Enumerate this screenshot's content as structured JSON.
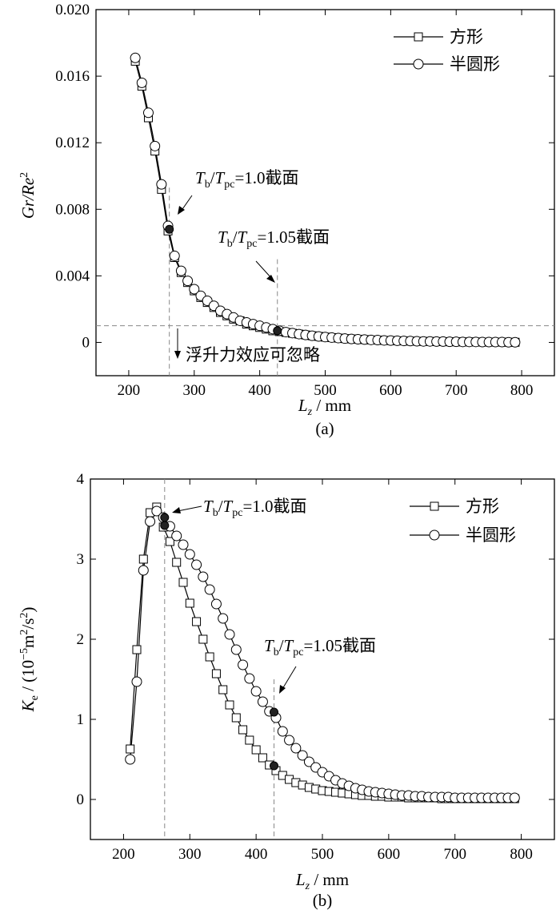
{
  "chart_data": [
    {
      "type": "line",
      "caption": "(a)",
      "xlabel": "L_z / mm",
      "xlabel_main": "L",
      "xlabel_sub": "z",
      "xlabel_unit": " / mm",
      "ylabel": "Gr/Re^2",
      "ylabel_main": "Gr/Re",
      "ylabel_sup": "2",
      "xlim": [
        150,
        850
      ],
      "ylim": [
        -0.002,
        0.02
      ],
      "xticks": [
        200,
        300,
        400,
        500,
        600,
        700,
        800
      ],
      "xtick_labels": [
        "200",
        "300",
        "400",
        "500",
        "600",
        "700",
        "800"
      ],
      "yticks": [
        0,
        0.004,
        0.008,
        0.012,
        0.016,
        0.02
      ],
      "ytick_labels": [
        "0",
        "0.004",
        "0.008",
        "0.012",
        "0.016",
        "0.020"
      ],
      "legend": {
        "position": "top-right",
        "entries": [
          "方形",
          "半圆形"
        ]
      },
      "threshold_line": {
        "y": 0.001,
        "label": "浮升力效应可忽略"
      },
      "annotations": [
        {
          "T": "T",
          "b": "b",
          "slash": "/",
          "T2": "T",
          "pc": "pc",
          "rest": "=1.0截面",
          "x": 262,
          "text": "T_b/T_pc=1.0截面"
        },
        {
          "T": "T",
          "b": "b",
          "slash": "/",
          "T2": "T",
          "pc": "pc",
          "rest": "=1.05截面",
          "x": 427,
          "text": "T_b/T_pc=1.05截面"
        }
      ],
      "series": [
        {
          "name": "方形",
          "marker": "square",
          "x": [
            210,
            220,
            230,
            240,
            250,
            260,
            270,
            280,
            290,
            300,
            310,
            320,
            330,
            340,
            350,
            360,
            370,
            380,
            390,
            400,
            410,
            420,
            430,
            440,
            450,
            460,
            470,
            480,
            490,
            500,
            510,
            520,
            530,
            540,
            550,
            560,
            570,
            580,
            590,
            600,
            610,
            620,
            630,
            640,
            650,
            660,
            670,
            680,
            690,
            700,
            710,
            720,
            730,
            740,
            750,
            760,
            770,
            780,
            790
          ],
          "values": [
            0.0169,
            0.0154,
            0.0135,
            0.0115,
            0.0092,
            0.0067,
            0.0051,
            0.0042,
            0.0036,
            0.0031,
            0.0027,
            0.0024,
            0.0021,
            0.0018,
            0.0016,
            0.0014,
            0.0013,
            0.0011,
            0.001,
            0.0009,
            0.0008,
            0.0007,
            0.00065,
            0.0006,
            0.00055,
            0.0005,
            0.00045,
            0.0004,
            0.00036,
            0.00032,
            0.00029,
            0.00026,
            0.00023,
            0.00021,
            0.00019,
            0.00017,
            0.00015,
            0.00014,
            0.00012,
            0.00011,
            0.0001,
            9e-05,
            8e-05,
            7e-05,
            6e-05,
            6e-05,
            5e-05,
            5e-05,
            4e-05,
            4e-05,
            3e-05,
            3e-05,
            3e-05,
            2e-05,
            2e-05,
            2e-05,
            2e-05,
            1e-05,
            1e-05
          ]
        },
        {
          "name": "半圆形",
          "marker": "circle",
          "x": [
            210,
            220,
            230,
            240,
            250,
            260,
            270,
            280,
            290,
            300,
            310,
            320,
            330,
            340,
            350,
            360,
            370,
            380,
            390,
            400,
            410,
            420,
            430,
            440,
            450,
            460,
            470,
            480,
            490,
            500,
            510,
            520,
            530,
            540,
            550,
            560,
            570,
            580,
            590,
            600,
            610,
            620,
            630,
            640,
            650,
            660,
            670,
            680,
            690,
            700,
            710,
            720,
            730,
            740,
            750,
            760,
            770,
            780,
            790
          ],
          "values": [
            0.0171,
            0.0156,
            0.0138,
            0.0118,
            0.0095,
            0.007,
            0.0052,
            0.0043,
            0.0037,
            0.0032,
            0.0028,
            0.0025,
            0.0022,
            0.0019,
            0.0017,
            0.0015,
            0.0013,
            0.0012,
            0.0011,
            0.001,
            0.0009,
            0.0008,
            0.0007,
            0.00062,
            0.00056,
            0.0005,
            0.00045,
            0.0004,
            0.00036,
            0.00032,
            0.00029,
            0.00026,
            0.00023,
            0.00021,
            0.00019,
            0.00017,
            0.00015,
            0.00014,
            0.00012,
            0.00011,
            0.0001,
            9e-05,
            8e-05,
            7e-05,
            6e-05,
            6e-05,
            5e-05,
            5e-05,
            4e-05,
            4e-05,
            3e-05,
            3e-05,
            3e-05,
            2e-05,
            2e-05,
            2e-05,
            2e-05,
            1e-05,
            1e-05
          ]
        }
      ],
      "highlight_points": [
        {
          "x": 262,
          "y": 0.0068
        },
        {
          "x": 427,
          "y": 0.0007
        }
      ]
    },
    {
      "type": "line",
      "caption": "(b)",
      "xlabel": "L_z / mm",
      "xlabel_main": "L",
      "xlabel_sub": "z",
      "xlabel_unit": " / mm",
      "ylabel": "K_e / (10^-5 m^2/s^2)",
      "ylabel_main": "K",
      "ylabel_sub": "e",
      "ylabel_mid": " / (10",
      "ylabel_exp": "−5",
      "ylabel_m": "m",
      "ylabel_m_exp": "2",
      "ylabel_s": "/s",
      "ylabel_s_exp": "2",
      "ylabel_end": ")",
      "xlim": [
        150,
        850
      ],
      "ylim": [
        -0.5,
        4
      ],
      "xticks": [
        200,
        300,
        400,
        500,
        600,
        700,
        800
      ],
      "xtick_labels": [
        "200",
        "300",
        "400",
        "500",
        "600",
        "700",
        "800"
      ],
      "yticks": [
        0,
        1,
        2,
        3,
        4
      ],
      "ytick_labels": [
        "0",
        "1",
        "2",
        "3",
        "4"
      ],
      "legend": {
        "position": "top-right",
        "entries": [
          "方形",
          "半圆形"
        ]
      },
      "annotations": [
        {
          "T": "T",
          "b": "b",
          "slash": "/",
          "T2": "T",
          "pc": "pc",
          "rest": "=1.0截面",
          "x": 262,
          "text": "T_b/T_pc=1.0截面"
        },
        {
          "T": "T",
          "b": "b",
          "slash": "/",
          "T2": "T",
          "pc": "pc",
          "rest": "=1.05截面",
          "x": 427,
          "text": "T_b/T_pc=1.05截面"
        }
      ],
      "series": [
        {
          "name": "方形",
          "marker": "square",
          "x": [
            210,
            220,
            230,
            240,
            250,
            260,
            270,
            280,
            290,
            300,
            310,
            320,
            330,
            340,
            350,
            360,
            370,
            380,
            390,
            400,
            410,
            420,
            430,
            440,
            450,
            460,
            470,
            480,
            490,
            500,
            510,
            520,
            530,
            540,
            550,
            560,
            570,
            580,
            590,
            600,
            610,
            620,
            630,
            640,
            650,
            660,
            670,
            680,
            690,
            700,
            710,
            720,
            730,
            740,
            750,
            760,
            770,
            780,
            790
          ],
          "values": [
            0.63,
            1.87,
            3.0,
            3.58,
            3.65,
            3.4,
            3.22,
            2.96,
            2.71,
            2.45,
            2.22,
            2.0,
            1.78,
            1.57,
            1.37,
            1.18,
            1.02,
            0.87,
            0.74,
            0.62,
            0.52,
            0.43,
            0.36,
            0.3,
            0.25,
            0.21,
            0.18,
            0.15,
            0.13,
            0.11,
            0.1,
            0.09,
            0.08,
            0.07,
            0.06,
            0.05,
            0.05,
            0.04,
            0.04,
            0.03,
            0.03,
            0.03,
            0.02,
            0.02,
            0.02,
            0.02,
            0.02,
            0.01,
            0.01,
            0.01,
            0.01,
            0.01,
            0.01,
            0.01,
            0.01,
            0.01,
            0.01,
            0.01,
            0.01
          ]
        },
        {
          "name": "半圆形",
          "marker": "circle",
          "x": [
            210,
            220,
            230,
            240,
            250,
            260,
            270,
            280,
            290,
            300,
            310,
            320,
            330,
            340,
            350,
            360,
            370,
            380,
            390,
            400,
            410,
            420,
            430,
            440,
            450,
            460,
            470,
            480,
            490,
            500,
            510,
            520,
            530,
            540,
            550,
            560,
            570,
            580,
            590,
            600,
            610,
            620,
            630,
            640,
            650,
            660,
            670,
            680,
            690,
            700,
            710,
            720,
            730,
            740,
            750,
            760,
            770,
            780,
            790
          ],
          "values": [
            0.5,
            1.47,
            2.86,
            3.47,
            3.6,
            3.52,
            3.41,
            3.29,
            3.18,
            3.06,
            2.93,
            2.78,
            2.62,
            2.44,
            2.26,
            2.06,
            1.87,
            1.68,
            1.51,
            1.35,
            1.22,
            1.1,
            1.02,
            0.85,
            0.74,
            0.64,
            0.55,
            0.47,
            0.4,
            0.34,
            0.29,
            0.24,
            0.2,
            0.17,
            0.14,
            0.12,
            0.1,
            0.09,
            0.08,
            0.07,
            0.06,
            0.05,
            0.05,
            0.04,
            0.04,
            0.03,
            0.03,
            0.03,
            0.03,
            0.02,
            0.02,
            0.02,
            0.02,
            0.02,
            0.02,
            0.02,
            0.02,
            0.02,
            0.02
          ]
        }
      ],
      "highlight_points": [
        {
          "x": 262,
          "y": 3.42
        },
        {
          "x": 262,
          "y": 3.52
        },
        {
          "x": 427,
          "y": 0.42
        },
        {
          "x": 427,
          "y": 1.09
        }
      ]
    }
  ]
}
